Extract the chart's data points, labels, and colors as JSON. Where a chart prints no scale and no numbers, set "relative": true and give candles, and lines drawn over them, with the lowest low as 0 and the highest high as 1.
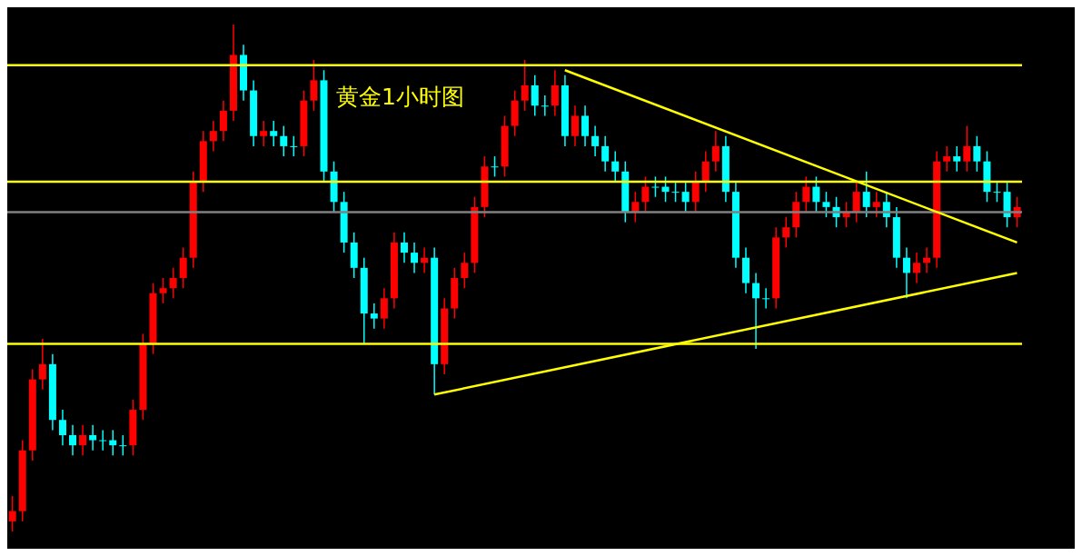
{
  "chart_data": {
    "type": "candlestick",
    "relative": true,
    "title": "黄金1小时图",
    "categories": [
      null,
      null,
      null,
      null,
      null,
      null,
      null,
      null,
      null,
      null,
      null,
      null,
      null,
      null,
      null,
      null,
      null,
      null,
      null,
      null,
      null,
      null,
      null,
      null,
      null,
      null,
      null,
      null,
      null,
      null,
      null,
      null,
      null,
      null,
      null,
      null,
      null,
      null,
      null,
      null,
      null,
      null,
      null,
      null,
      null,
      null,
      null,
      null,
      null,
      null,
      null,
      null,
      null,
      null,
      null,
      null,
      null,
      null,
      null,
      null,
      null,
      null,
      null,
      null,
      null,
      null,
      null,
      null,
      null,
      null,
      null,
      null,
      null,
      null,
      null,
      null,
      null,
      null,
      null,
      null,
      null,
      null,
      null,
      null,
      null,
      null,
      null,
      null,
      null,
      null,
      null,
      null,
      null,
      null,
      null,
      null,
      null,
      null,
      null,
      null,
      null
    ],
    "ohlc": [
      [
        0.02,
        0.07,
        0,
        0.04
      ],
      [
        0.04,
        0.18,
        0.02,
        0.16
      ],
      [
        0.16,
        0.32,
        0.14,
        0.3
      ],
      [
        0.3,
        0.38,
        0.28,
        0.33
      ],
      [
        0.33,
        0.35,
        0.2,
        0.22
      ],
      [
        0.22,
        0.24,
        0.17,
        0.19
      ],
      [
        0.19,
        0.21,
        0.15,
        0.17
      ],
      [
        0.17,
        0.21,
        0.15,
        0.19
      ],
      [
        0.19,
        0.21,
        0.16,
        0.18
      ],
      [
        0.18,
        0.2,
        0.16,
        0.18
      ],
      [
        0.18,
        0.2,
        0.15,
        0.17
      ],
      [
        0.17,
        0.19,
        0.15,
        0.17
      ],
      [
        0.17,
        0.26,
        0.15,
        0.24
      ],
      [
        0.24,
        0.39,
        0.22,
        0.37
      ],
      [
        0.37,
        0.49,
        0.35,
        0.47
      ],
      [
        0.47,
        0.5,
        0.45,
        0.48
      ],
      [
        0.48,
        0.52,
        0.46,
        0.5
      ],
      [
        0.5,
        0.56,
        0.48,
        0.54
      ],
      [
        0.54,
        0.71,
        0.52,
        0.69
      ],
      [
        0.69,
        0.79,
        0.67,
        0.77
      ],
      [
        0.77,
        0.81,
        0.75,
        0.79
      ],
      [
        0.79,
        0.85,
        0.77,
        0.83
      ],
      [
        0.83,
        1,
        0.81,
        0.94
      ],
      [
        0.94,
        0.96,
        0.85,
        0.87
      ],
      [
        0.87,
        0.89,
        0.76,
        0.78
      ],
      [
        0.78,
        0.81,
        0.76,
        0.79
      ],
      [
        0.79,
        0.81,
        0.76,
        0.78
      ],
      [
        0.78,
        0.8,
        0.74,
        0.76
      ],
      [
        0.76,
        0.78,
        0.74,
        0.76
      ],
      [
        0.76,
        0.87,
        0.74,
        0.85
      ],
      [
        0.85,
        0.93,
        0.83,
        0.89
      ],
      [
        0.89,
        0.91,
        0.69,
        0.71
      ],
      [
        0.71,
        0.73,
        0.63,
        0.65
      ],
      [
        0.65,
        0.67,
        0.55,
        0.57
      ],
      [
        0.57,
        0.59,
        0.5,
        0.52
      ],
      [
        0.52,
        0.54,
        0.37,
        0.43
      ],
      [
        0.43,
        0.45,
        0.4,
        0.42
      ],
      [
        0.42,
        0.48,
        0.4,
        0.46
      ],
      [
        0.46,
        0.59,
        0.44,
        0.57
      ],
      [
        0.57,
        0.59,
        0.53,
        0.55
      ],
      [
        0.55,
        0.57,
        0.51,
        0.53
      ],
      [
        0.53,
        0.56,
        0.51,
        0.54
      ],
      [
        0.54,
        0.56,
        0.27,
        0.33
      ],
      [
        0.33,
        0.46,
        0.31,
        0.44
      ],
      [
        0.44,
        0.52,
        0.42,
        0.5
      ],
      [
        0.5,
        0.55,
        0.48,
        0.53
      ],
      [
        0.53,
        0.66,
        0.51,
        0.64
      ],
      [
        0.64,
        0.74,
        0.62,
        0.72
      ],
      [
        0.72,
        0.74,
        0.7,
        0.72
      ],
      [
        0.72,
        0.82,
        0.7,
        0.8
      ],
      [
        0.8,
        0.87,
        0.78,
        0.85
      ],
      [
        0.85,
        0.93,
        0.83,
        0.88
      ],
      [
        0.88,
        0.9,
        0.82,
        0.84
      ],
      [
        0.84,
        0.86,
        0.82,
        0.84
      ],
      [
        0.84,
        0.91,
        0.82,
        0.88
      ],
      [
        0.88,
        0.9,
        0.76,
        0.78
      ],
      [
        0.78,
        0.84,
        0.76,
        0.82
      ],
      [
        0.82,
        0.84,
        0.76,
        0.78
      ],
      [
        0.78,
        0.8,
        0.74,
        0.76
      ],
      [
        0.76,
        0.78,
        0.71,
        0.73
      ],
      [
        0.73,
        0.75,
        0.69,
        0.71
      ],
      [
        0.71,
        0.73,
        0.61,
        0.63
      ],
      [
        0.63,
        0.67,
        0.61,
        0.65
      ],
      [
        0.65,
        0.7,
        0.63,
        0.68
      ],
      [
        0.68,
        0.7,
        0.66,
        0.68
      ],
      [
        0.68,
        0.7,
        0.65,
        0.67
      ],
      [
        0.67,
        0.69,
        0.65,
        0.67
      ],
      [
        0.67,
        0.69,
        0.63,
        0.65
      ],
      [
        0.65,
        0.71,
        0.63,
        0.69
      ],
      [
        0.69,
        0.75,
        0.67,
        0.73
      ],
      [
        0.73,
        0.79,
        0.71,
        0.76
      ],
      [
        0.76,
        0.78,
        0.65,
        0.67
      ],
      [
        0.67,
        0.69,
        0.52,
        0.54
      ],
      [
        0.54,
        0.56,
        0.47,
        0.49
      ],
      [
        0.49,
        0.51,
        0.36,
        0.46
      ],
      [
        0.46,
        0.48,
        0.44,
        0.46
      ],
      [
        0.46,
        0.6,
        0.44,
        0.58
      ],
      [
        0.58,
        0.62,
        0.56,
        0.6
      ],
      [
        0.6,
        0.67,
        0.58,
        0.65
      ],
      [
        0.65,
        0.7,
        0.63,
        0.68
      ],
      [
        0.68,
        0.7,
        0.63,
        0.65
      ],
      [
        0.65,
        0.67,
        0.62,
        0.64
      ],
      [
        0.64,
        0.66,
        0.6,
        0.62
      ],
      [
        0.62,
        0.65,
        0.6,
        0.63
      ],
      [
        0.63,
        0.69,
        0.61,
        0.67
      ],
      [
        0.67,
        0.71,
        0.62,
        0.64
      ],
      [
        0.64,
        0.67,
        0.62,
        0.65
      ],
      [
        0.65,
        0.67,
        0.6,
        0.62
      ],
      [
        0.62,
        0.64,
        0.52,
        0.54
      ],
      [
        0.54,
        0.56,
        0.46,
        0.51
      ],
      [
        0.51,
        0.55,
        0.49,
        0.53
      ],
      [
        0.53,
        0.56,
        0.51,
        0.54
      ],
      [
        0.54,
        0.75,
        0.52,
        0.73
      ],
      [
        0.73,
        0.76,
        0.71,
        0.74
      ],
      [
        0.74,
        0.76,
        0.71,
        0.73
      ],
      [
        0.73,
        0.8,
        0.71,
        0.76
      ],
      [
        0.76,
        0.78,
        0.71,
        0.73
      ],
      [
        0.73,
        0.75,
        0.65,
        0.67
      ],
      [
        0.67,
        0.69,
        0.65,
        0.67
      ],
      [
        0.67,
        0.69,
        0.6,
        0.62
      ],
      [
        0.62,
        0.66,
        0.6,
        0.64
      ]
    ],
    "colors": [
      "#ff0000",
      "#ff0000",
      "#ff0000",
      "#ff0000",
      "#00ffff",
      "#00ffff",
      "#00ffff",
      "#ff0000",
      "#00ffff",
      "#00ffff",
      "#00ffff",
      "#00ffff",
      "#ff0000",
      "#ff0000",
      "#ff0000",
      "#ff0000",
      "#ff0000",
      "#ff0000",
      "#ff0000",
      "#ff0000",
      "#ff0000",
      "#ff0000",
      "#ff0000",
      "#00ffff",
      "#00ffff",
      "#ff0000",
      "#00ffff",
      "#00ffff",
      "#00ffff",
      "#ff0000",
      "#ff0000",
      "#00ffff",
      "#00ffff",
      "#00ffff",
      "#00ffff",
      "#00ffff",
      "#00ffff",
      "#ff0000",
      "#ff0000",
      "#00ffff",
      "#00ffff",
      "#ff0000",
      "#00ffff",
      "#ff0000",
      "#ff0000",
      "#ff0000",
      "#ff0000",
      "#ff0000",
      "#00ffff",
      "#ff0000",
      "#ff0000",
      "#ff0000",
      "#00ffff",
      "#00ffff",
      "#ff0000",
      "#00ffff",
      "#ff0000",
      "#00ffff",
      "#00ffff",
      "#00ffff",
      "#00ffff",
      "#00ffff",
      "#ff0000",
      "#ff0000",
      "#00ffff",
      "#00ffff",
      "#00ffff",
      "#00ffff",
      "#ff0000",
      "#ff0000",
      "#ff0000",
      "#00ffff",
      "#00ffff",
      "#00ffff",
      "#00ffff",
      "#00ffff",
      "#ff0000",
      "#ff0000",
      "#ff0000",
      "#ff0000",
      "#00ffff",
      "#00ffff",
      "#00ffff",
      "#ff0000",
      "#ff0000",
      "#00ffff",
      "#ff0000",
      "#00ffff",
      "#00ffff",
      "#00ffff",
      "#ff0000",
      "#ff0000",
      "#ff0000",
      "#ff0000",
      "#00ffff",
      "#ff0000",
      "#00ffff",
      "#00ffff",
      "#00ffff",
      "#00ffff",
      "#ff0000"
    ],
    "series": [
      {
        "type": "line",
        "color": "#ffff00",
        "values": [
          null,
          null,
          null,
          null,
          null,
          null,
          null,
          null,
          null,
          null,
          null,
          null,
          null,
          null,
          null,
          null,
          null,
          null,
          null,
          null,
          null,
          null,
          null,
          null,
          null,
          null,
          null,
          null,
          null,
          null,
          null,
          null,
          null,
          null,
          null,
          null,
          null,
          null,
          null,
          null,
          null,
          null,
          null,
          null,
          null,
          null,
          null,
          null,
          null,
          null,
          null,
          null,
          null,
          null,
          null,
          0.91,
          null,
          null,
          null,
          null,
          null,
          null,
          null,
          null,
          null,
          null,
          null,
          null,
          null,
          null,
          null,
          null,
          null,
          null,
          null,
          null,
          null,
          null,
          null,
          null,
          null,
          null,
          null,
          null,
          null,
          null,
          null,
          null,
          null,
          null,
          null,
          null,
          null,
          null,
          null,
          null,
          null,
          null,
          null,
          null,
          0.57
        ]
      },
      {
        "type": "line",
        "color": "#ffff00",
        "values": [
          null,
          null,
          null,
          null,
          null,
          null,
          null,
          null,
          null,
          null,
          null,
          null,
          null,
          null,
          null,
          null,
          null,
          null,
          null,
          null,
          null,
          null,
          null,
          null,
          null,
          null,
          null,
          null,
          null,
          null,
          null,
          null,
          null,
          null,
          null,
          null,
          null,
          null,
          null,
          null,
          null,
          null,
          0.27,
          null,
          null,
          null,
          null,
          null,
          null,
          null,
          null,
          null,
          null,
          null,
          null,
          null,
          null,
          null,
          null,
          null,
          null,
          null,
          null,
          null,
          null,
          null,
          null,
          null,
          null,
          null,
          null,
          null,
          null,
          null,
          null,
          null,
          null,
          null,
          null,
          null,
          null,
          null,
          null,
          null,
          null,
          null,
          null,
          null,
          null,
          null,
          null,
          null,
          null,
          null,
          null,
          null,
          null,
          null,
          null,
          null,
          0.51
        ]
      }
    ],
    "ref_lines": [
      {
        "axis": "y",
        "value": 0.92,
        "color": "#ffff00"
      },
      {
        "axis": "y",
        "value": 0.69,
        "color": "#ffff00"
      },
      {
        "axis": "y",
        "value": 0.37,
        "color": "#ffff00"
      },
      {
        "axis": "y",
        "value": 0.63,
        "color": "#808080"
      }
    ],
    "tick_labels": false
  }
}
